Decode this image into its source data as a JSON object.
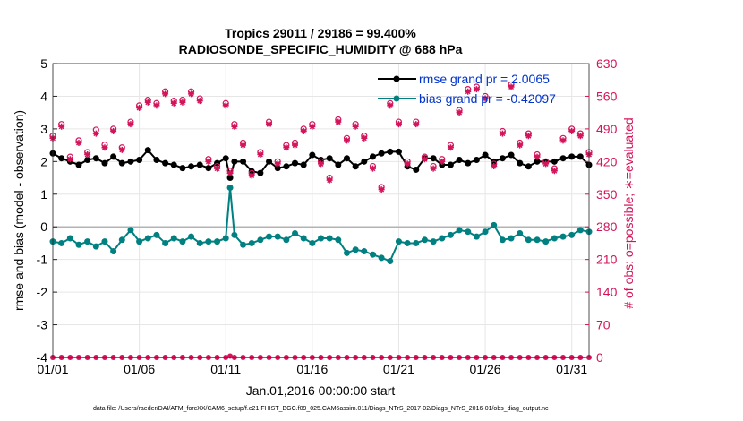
{
  "chart_data": {
    "type": "line",
    "title_line1": "Tropics 29011 / 29186 = 99.400%",
    "title_line2": "RADIOSONDE_SPECIFIC_HUMIDITY @ 688 hPa",
    "ylabel_left": "rmse and bias (model - observation)",
    "ylabel_right": "# of obs: o=possible; ∗=evaluated",
    "xlabel": "Jan.01,2016 00:00:00 start",
    "footer": "data file: /Users/raeder/DAI/ATM_forcXX/CAM6_setup/f.e21.FHIST_BGC.f09_025.CAM6assim.011/Diags_NTrS_2017-02/Diags_NTrS_2016-01/obs_diag_output.nc",
    "ylim_left": [
      -4,
      5
    ],
    "ylim_right": [
      0,
      630
    ],
    "xlim": [
      1,
      32
    ],
    "left_ticks": [
      "-4",
      "-3",
      "-2",
      "-1",
      "0",
      "1",
      "2",
      "3",
      "4",
      "5"
    ],
    "right_ticks": [
      "0",
      "70",
      "140",
      "210",
      "280",
      "350",
      "420",
      "490",
      "560",
      "630"
    ],
    "x_ticks": [
      {
        "day": 1,
        "label": "01/01"
      },
      {
        "day": 6,
        "label": "01/06"
      },
      {
        "day": 11,
        "label": "01/11"
      },
      {
        "day": 16,
        "label": "01/16"
      },
      {
        "day": 21,
        "label": "01/21"
      },
      {
        "day": 26,
        "label": "01/26"
      },
      {
        "day": 31,
        "label": "01/31"
      }
    ],
    "legend": [
      {
        "label": "rmse grand pr = 2.0065",
        "color": "#000000"
      },
      {
        "label": "bias grand pr = -0.42097",
        "color": "#008080"
      }
    ],
    "series": [
      {
        "name": "rmse",
        "axis": "left",
        "color": "#000000",
        "x": [
          1,
          1.5,
          2,
          2.5,
          3,
          3.5,
          4,
          4.5,
          5,
          5.5,
          6,
          6.5,
          7,
          7.5,
          8,
          8.5,
          9,
          9.5,
          10,
          10.5,
          11,
          11.25,
          11.5,
          12,
          12.5,
          13,
          13.5,
          14,
          14.5,
          15,
          15.5,
          16,
          16.5,
          17,
          17.5,
          18,
          18.5,
          19,
          19.5,
          20,
          20.5,
          21,
          21.5,
          22,
          22.5,
          23,
          23.5,
          24,
          24.5,
          25,
          25.5,
          26,
          26.5,
          27,
          27.5,
          28,
          28.5,
          29,
          29.5,
          30,
          30.5,
          31,
          31.5,
          32
        ],
        "values": [
          2.25,
          2.1,
          2.0,
          1.9,
          2.05,
          2.1,
          1.95,
          2.15,
          1.95,
          2.0,
          2.05,
          2.35,
          2.05,
          1.95,
          1.9,
          1.8,
          1.85,
          1.9,
          1.8,
          1.95,
          2.1,
          1.5,
          2.0,
          2.0,
          1.7,
          1.65,
          2.0,
          1.8,
          1.85,
          1.95,
          1.9,
          2.2,
          2.05,
          2.1,
          1.9,
          2.1,
          1.85,
          2.0,
          2.15,
          2.25,
          2.3,
          2.3,
          1.85,
          1.75,
          2.1,
          2.1,
          1.9,
          1.9,
          2.05,
          1.95,
          2.05,
          2.2,
          2.0,
          2.1,
          2.2,
          1.95,
          1.85,
          2.0,
          2.0,
          2.0,
          2.1,
          2.15,
          2.15,
          1.9
        ]
      },
      {
        "name": "bias",
        "axis": "left",
        "color": "#008080",
        "x": [
          1,
          1.5,
          2,
          2.5,
          3,
          3.5,
          4,
          4.5,
          5,
          5.5,
          6,
          6.5,
          7,
          7.5,
          8,
          8.5,
          9,
          9.5,
          10,
          10.5,
          11,
          11.25,
          11.5,
          12,
          12.5,
          13,
          13.5,
          14,
          14.5,
          15,
          15.5,
          16,
          16.5,
          17,
          17.5,
          18,
          18.5,
          19,
          19.5,
          20,
          20.5,
          21,
          21.5,
          22,
          22.5,
          23,
          23.5,
          24,
          24.5,
          25,
          25.5,
          26,
          26.5,
          27,
          27.5,
          28,
          28.5,
          29,
          29.5,
          30,
          30.5,
          31,
          31.5,
          32
        ],
        "values": [
          -0.45,
          -0.5,
          -0.35,
          -0.55,
          -0.45,
          -0.6,
          -0.45,
          -0.75,
          -0.4,
          -0.1,
          -0.45,
          -0.35,
          -0.25,
          -0.5,
          -0.35,
          -0.45,
          -0.3,
          -0.5,
          -0.45,
          -0.45,
          -0.35,
          1.2,
          -0.25,
          -0.55,
          -0.5,
          -0.4,
          -0.3,
          -0.3,
          -0.4,
          -0.2,
          -0.35,
          -0.5,
          -0.35,
          -0.35,
          -0.4,
          -0.8,
          -0.7,
          -0.75,
          -0.85,
          -0.95,
          -1.05,
          -0.45,
          -0.5,
          -0.5,
          -0.4,
          -0.45,
          -0.35,
          -0.25,
          -0.1,
          -0.15,
          -0.3,
          -0.15,
          0.05,
          -0.4,
          -0.35,
          -0.2,
          -0.4,
          -0.4,
          -0.45,
          -0.35,
          -0.3,
          -0.25,
          -0.1,
          -0.15
        ]
      },
      {
        "name": "obs possible",
        "axis": "right",
        "marker": "o",
        "color": "#d4145a",
        "x": [
          1,
          1.5,
          2,
          2.5,
          3,
          3.5,
          4,
          4.5,
          5,
          5.5,
          6,
          6.5,
          7,
          7.5,
          8,
          8.5,
          9,
          9.5,
          10,
          10.5,
          11,
          11.25,
          11.5,
          12,
          12.5,
          13,
          13.5,
          14,
          14.5,
          15,
          15.5,
          16,
          16.5,
          17,
          17.5,
          18,
          18.5,
          19,
          19.5,
          20,
          20.5,
          21,
          21.5,
          22,
          22.5,
          23,
          23.5,
          24,
          24.5,
          25,
          25.5,
          26,
          26.5,
          27,
          27.5,
          28,
          28.5,
          29,
          29.5,
          30,
          30.5,
          31,
          31.5,
          32
        ],
        "values": [
          475,
          500,
          430,
          465,
          440,
          488,
          456,
          490,
          450,
          505,
          540,
          552,
          545,
          570,
          550,
          552,
          570,
          555,
          425,
          410,
          545,
          400,
          500,
          460,
          395,
          440,
          505,
          420,
          455,
          460,
          490,
          500,
          420,
          385,
          510,
          470,
          500,
          475,
          410,
          365,
          545,
          505,
          420,
          505,
          430,
          410,
          425,
          455,
          530,
          575,
          580,
          560,
          415,
          485,
          585,
          460,
          480,
          435,
          420,
          405,
          470,
          490,
          480,
          440
        ]
      },
      {
        "name": "obs evaluated",
        "axis": "right",
        "marker": "*",
        "color": "#d4145a",
        "x": [
          1,
          1.5,
          2,
          2.5,
          3,
          3.5,
          4,
          4.5,
          5,
          5.5,
          6,
          6.5,
          7,
          7.5,
          8,
          8.5,
          9,
          9.5,
          10,
          10.5,
          11,
          11.25,
          11.5,
          12,
          12.5,
          13,
          13.5,
          14,
          14.5,
          15,
          15.5,
          16,
          16.5,
          17,
          17.5,
          18,
          18.5,
          19,
          19.5,
          20,
          20.5,
          21,
          21.5,
          22,
          22.5,
          23,
          23.5,
          24,
          24.5,
          25,
          25.5,
          26,
          26.5,
          27,
          27.5,
          28,
          28.5,
          29,
          29.5,
          30,
          30.5,
          31,
          31.5,
          32
        ],
        "values": [
          470,
          495,
          425,
          460,
          435,
          480,
          450,
          485,
          445,
          500,
          535,
          547,
          540,
          565,
          545,
          547,
          565,
          550,
          420,
          405,
          540,
          395,
          495,
          455,
          390,
          435,
          500,
          415,
          450,
          455,
          485,
          495,
          415,
          380,
          505,
          465,
          495,
          470,
          405,
          360,
          540,
          500,
          415,
          500,
          425,
          405,
          420,
          450,
          525,
          570,
          575,
          555,
          410,
          480,
          580,
          455,
          475,
          430,
          415,
          400,
          465,
          485,
          475,
          435
        ]
      },
      {
        "name": "obs at zero",
        "axis": "right",
        "color": "#d4145a",
        "x": [
          1,
          1.5,
          2,
          2.5,
          3,
          3.5,
          4,
          4.5,
          5,
          5.5,
          6,
          6.5,
          7,
          7.5,
          8,
          8.5,
          9,
          9.5,
          10,
          10.5,
          11,
          11.25,
          11.5,
          12,
          12.5,
          13,
          13.5,
          14,
          14.5,
          15,
          15.5,
          16,
          16.5,
          17,
          17.5,
          18,
          18.5,
          19,
          19.5,
          20,
          20.5,
          21,
          21.5,
          22,
          22.5,
          23,
          23.5,
          24,
          24.5,
          25,
          25.5,
          26,
          26.5,
          27,
          27.5,
          28,
          28.5,
          29,
          29.5,
          30,
          30.5,
          31,
          31.5,
          32
        ],
        "values": [
          0,
          0,
          0,
          0,
          0,
          0,
          0,
          0,
          0,
          0,
          0,
          0,
          0,
          0,
          0,
          0,
          0,
          0,
          0,
          0,
          0,
          3,
          0,
          0,
          0,
          0,
          0,
          0,
          0,
          0,
          0,
          0,
          0,
          0,
          0,
          0,
          0,
          0,
          0,
          0,
          0,
          0,
          0,
          0,
          0,
          0,
          0,
          0,
          0,
          0,
          0,
          0,
          0,
          0,
          0,
          0,
          0,
          0,
          0,
          0,
          0,
          0,
          0,
          0
        ]
      }
    ]
  }
}
